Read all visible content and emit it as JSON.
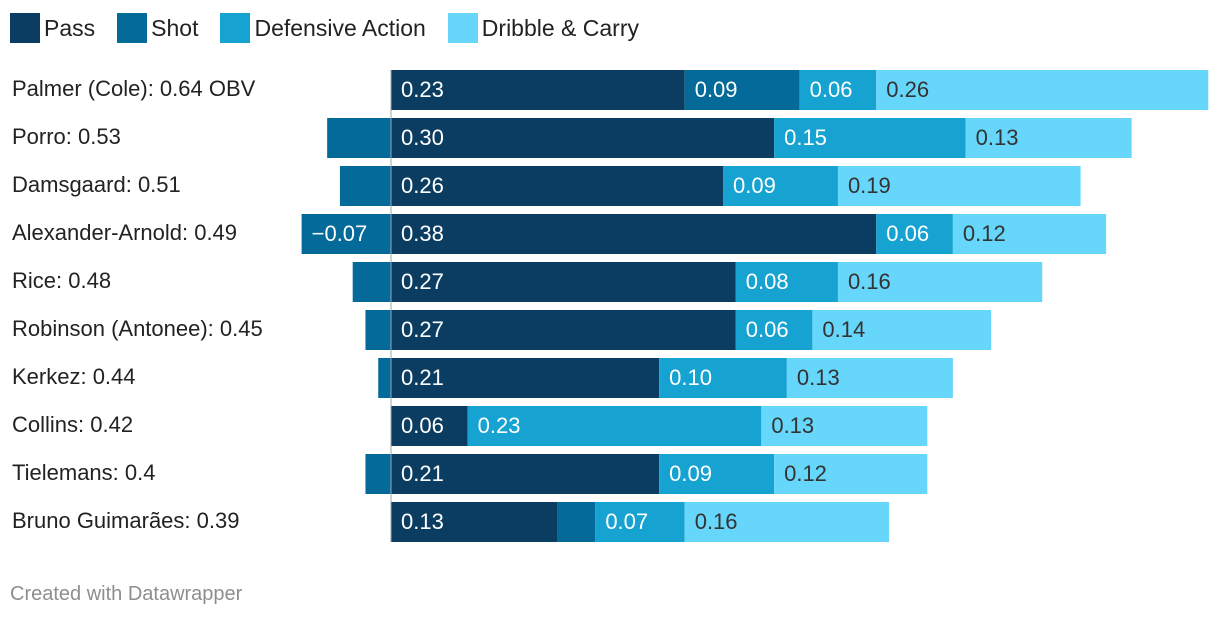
{
  "legend": [
    {
      "name": "Pass",
      "color": "#0b3d63"
    },
    {
      "name": "Shot",
      "color": "#046a99"
    },
    {
      "name": "Defensive Action",
      "color": "#17a3d1"
    },
    {
      "name": "Dribble & Carry",
      "color": "#66d6fa"
    }
  ],
  "footer": {
    "text": "Created with Datawrapper"
  },
  "chart_data": {
    "type": "bar",
    "orientation": "horizontal",
    "stacked": true,
    "title": "",
    "xlabel": "",
    "ylabel": "",
    "xlim": [
      -0.07,
      0.64
    ],
    "grid": false,
    "legend_position": "top-left",
    "categories": [
      "Palmer (Cole): 0.64 OBV",
      "Porro: 0.53",
      "Damsgaard: 0.51",
      "Alexander-Arnold: 0.49",
      "Rice: 0.48",
      "Robinson (Antonee): 0.45",
      "Kerkez: 0.44",
      "Collins: 0.42",
      "Tielemans: 0.4",
      "Bruno Guimarães: 0.39"
    ],
    "series": [
      {
        "name": "Pass",
        "values": [
          0.23,
          0.3,
          0.26,
          0.38,
          0.27,
          0.27,
          0.21,
          0.06,
          0.21,
          0.13
        ],
        "labels": [
          "0.23",
          "0.30",
          "0.26",
          "0.38",
          "0.27",
          "0.27",
          "0.21",
          "0.06",
          "0.21",
          "0.13"
        ]
      },
      {
        "name": "Shot",
        "values": [
          0.09,
          -0.05,
          -0.04,
          -0.07,
          -0.03,
          -0.02,
          -0.01,
          0.0,
          -0.02,
          0.03
        ],
        "labels": [
          "0.09",
          "",
          "",
          "−0.07",
          "",
          "",
          "",
          "",
          "",
          ""
        ]
      },
      {
        "name": "Defensive Action",
        "values": [
          0.06,
          0.15,
          0.09,
          0.06,
          0.08,
          0.06,
          0.1,
          0.23,
          0.09,
          0.07
        ],
        "labels": [
          "0.06",
          "0.15",
          "0.09",
          "0.06",
          "0.08",
          "0.06",
          "0.10",
          "0.23",
          "0.09",
          "0.07"
        ]
      },
      {
        "name": "Dribble & Carry",
        "values": [
          0.26,
          0.13,
          0.19,
          0.12,
          0.16,
          0.14,
          0.13,
          0.13,
          0.12,
          0.16
        ],
        "labels": [
          "0.26",
          "0.13",
          "0.19",
          "0.12",
          "0.16",
          "0.14",
          "0.13",
          "0.13",
          "0.12",
          "0.16"
        ]
      }
    ]
  }
}
